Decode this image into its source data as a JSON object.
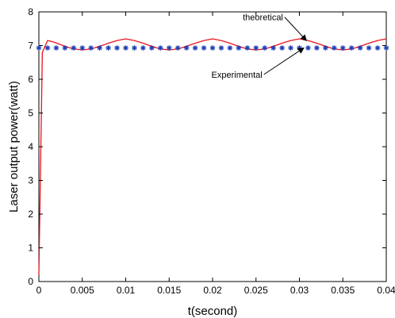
{
  "chart_data": {
    "type": "line",
    "title": "",
    "xlabel": "t(second)",
    "ylabel": "Laser output power(watt)",
    "xlim": [
      0,
      0.04
    ],
    "ylim": [
      0,
      8
    ],
    "grid": false,
    "legend": "none",
    "x_ticks": [
      "0",
      "0.005",
      "0.01",
      "0.015",
      "0.02",
      "0.025",
      "0.03",
      "0.035",
      "0.04"
    ],
    "y_ticks": [
      "0",
      "1",
      "2",
      "3",
      "4",
      "5",
      "6",
      "7",
      "8"
    ],
    "series": [
      {
        "color": "#e8141d",
        "style": "line",
        "x": [
          0,
          0.0004,
          0.001,
          0.0015,
          0.002,
          0.003,
          0.004,
          0.005,
          0.006,
          0.007,
          0.008,
          0.009,
          0.01,
          0.011,
          0.012,
          0.013,
          0.014,
          0.015,
          0.016,
          0.017,
          0.018,
          0.019,
          0.02,
          0.021,
          0.022,
          0.023,
          0.024,
          0.025,
          0.026,
          0.027,
          0.028,
          0.029,
          0.03,
          0.031,
          0.032,
          0.033,
          0.034,
          0.035,
          0.036,
          0.037,
          0.038,
          0.039,
          0.04
        ],
        "y": [
          0.2,
          6.8,
          7.15,
          7.12,
          7.08,
          6.98,
          6.9,
          6.87,
          6.9,
          6.98,
          7.07,
          7.15,
          7.2,
          7.15,
          7.07,
          6.98,
          6.9,
          6.87,
          6.9,
          6.98,
          7.07,
          7.15,
          7.2,
          7.15,
          7.07,
          6.98,
          6.9,
          6.87,
          6.9,
          6.98,
          7.07,
          7.15,
          7.2,
          7.15,
          7.07,
          6.98,
          6.9,
          6.87,
          6.9,
          6.98,
          7.07,
          7.15,
          7.2
        ]
      },
      {
        "color": "#1c3fb4",
        "style": "markers",
        "marker": "asterisk",
        "constant_y": 6.93,
        "x_start": 0,
        "x_end": 0.04,
        "count": 41
      }
    ],
    "annotations": [
      {
        "text": "theoretical",
        "target_x": 0.0308,
        "target_y": 7.15,
        "text_x": 0.0258,
        "text_y": 7.75
      },
      {
        "text": "Experimental",
        "target_x": 0.0305,
        "target_y": 6.93,
        "text_x": 0.0228,
        "text_y": 6.05
      }
    ]
  }
}
